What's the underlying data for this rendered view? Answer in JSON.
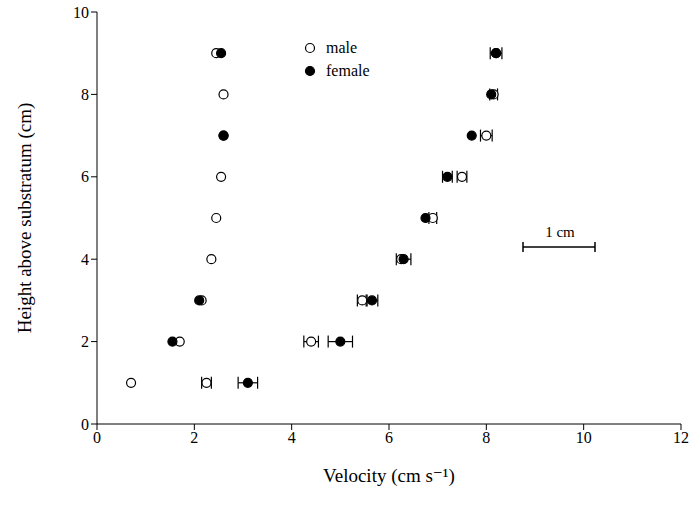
{
  "chart_data": {
    "type": "scatter",
    "x_label": "Velocity (cm s⁻¹)",
    "y_label": "Height above substratum (cm)",
    "xlim": [
      0,
      12
    ],
    "xticks": [
      0,
      2,
      4,
      6,
      8,
      10,
      12
    ],
    "ylim": [
      0,
      10
    ],
    "yticks": [
      0,
      2,
      4,
      6,
      8,
      10
    ],
    "grid": false,
    "legend": "top",
    "annotations": [
      "1 cm"
    ],
    "series": [
      {
        "name": "male",
        "color": "#000000",
        "marker": "open_circle",
        "x": [
          0.7,
          1.7,
          2.15,
          2.35,
          2.45,
          2.55,
          2.6,
          2.6,
          2.45,
          2.25,
          4.4,
          5.45,
          6.25,
          6.9,
          7.5,
          8.0,
          8.15,
          8.2
        ],
        "y": [
          1,
          2,
          3,
          4,
          5,
          6,
          7,
          8,
          9,
          1,
          2,
          3,
          4,
          5,
          6,
          7,
          8,
          9
        ],
        "x_error": [
          null,
          null,
          null,
          null,
          null,
          null,
          null,
          null,
          null,
          0.1,
          0.15,
          0.1,
          null,
          0.08,
          0.1,
          0.12,
          0.08,
          0.12
        ]
      },
      {
        "name": "female",
        "color": "#000000",
        "marker": "filled_circle",
        "x": [
          1.55,
          2.1,
          2.6,
          2.55,
          3.1,
          5.0,
          5.65,
          6.3,
          6.75,
          7.2,
          7.7,
          8.1,
          8.2
        ],
        "y": [
          2,
          3,
          7,
          9,
          1,
          2,
          3,
          4,
          5,
          6,
          7,
          8,
          9
        ],
        "x_error": [
          null,
          null,
          null,
          null,
          0.2,
          0.25,
          0.12,
          0.15,
          null,
          0.1,
          null,
          null,
          null
        ]
      }
    ]
  }
}
